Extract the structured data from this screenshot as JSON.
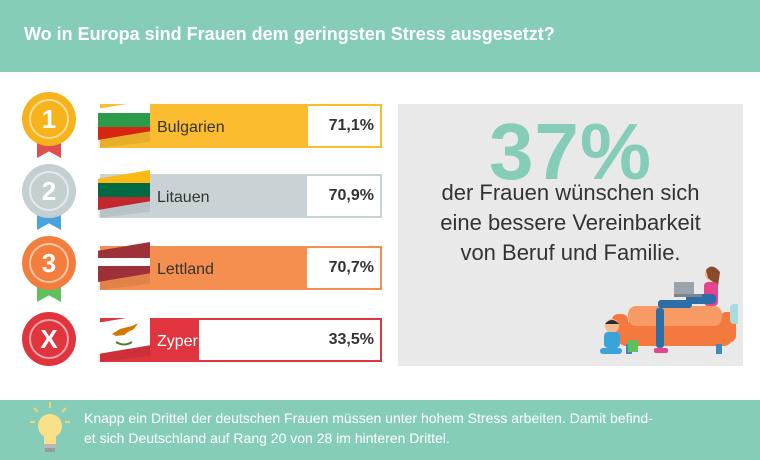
{
  "header": {
    "title": "Wo in Europa sind Frauen dem geringsten Stress ausgesetzt?"
  },
  "chart_data": {
    "type": "bar",
    "title": "Wo in Europa sind Frauen dem geringsten Stress ausgesetzt?",
    "categories": [
      "Bulgarien",
      "Litauen",
      "Lettland",
      "Zypern"
    ],
    "values": [
      71.1,
      70.9,
      70.7,
      33.5
    ],
    "value_labels": [
      "71,1%",
      "70,9%",
      "70,7%",
      "33,5%"
    ],
    "ranks": [
      "1",
      "2",
      "3",
      "X"
    ],
    "unit": "%",
    "ylim": [
      0,
      100
    ],
    "legend": "none",
    "grid": false,
    "colors": [
      "#fbbd2f",
      "#c9d3d6",
      "#f48f4f",
      "#e0353f"
    ],
    "medal_colors": [
      "#f6b31c",
      "#c4cfd2",
      "#f27d3c",
      "#e0353f"
    ],
    "ribbon_colors": [
      "#e04e4e",
      "#4aa3df",
      "#5ec15e",
      "#e0353f"
    ]
  },
  "stat": {
    "percent": "37%",
    "lines": [
      "der Frauen wünschen sich",
      "eine bessere Vereinbarkeit",
      "von Beruf und Familie."
    ]
  },
  "footer": {
    "icon": "lightbulb-icon",
    "lines": [
      "Knapp ein Drittel der deutschen Frauen müssen unter hohem Stress arbeiten. Damit befind-",
      "et sich Deutschland auf Rang 20 von 28 im hinteren Drittel."
    ]
  },
  "colors": {
    "accent": "#86cdb9",
    "panel": "#e9e9e9",
    "text": "#333333"
  }
}
